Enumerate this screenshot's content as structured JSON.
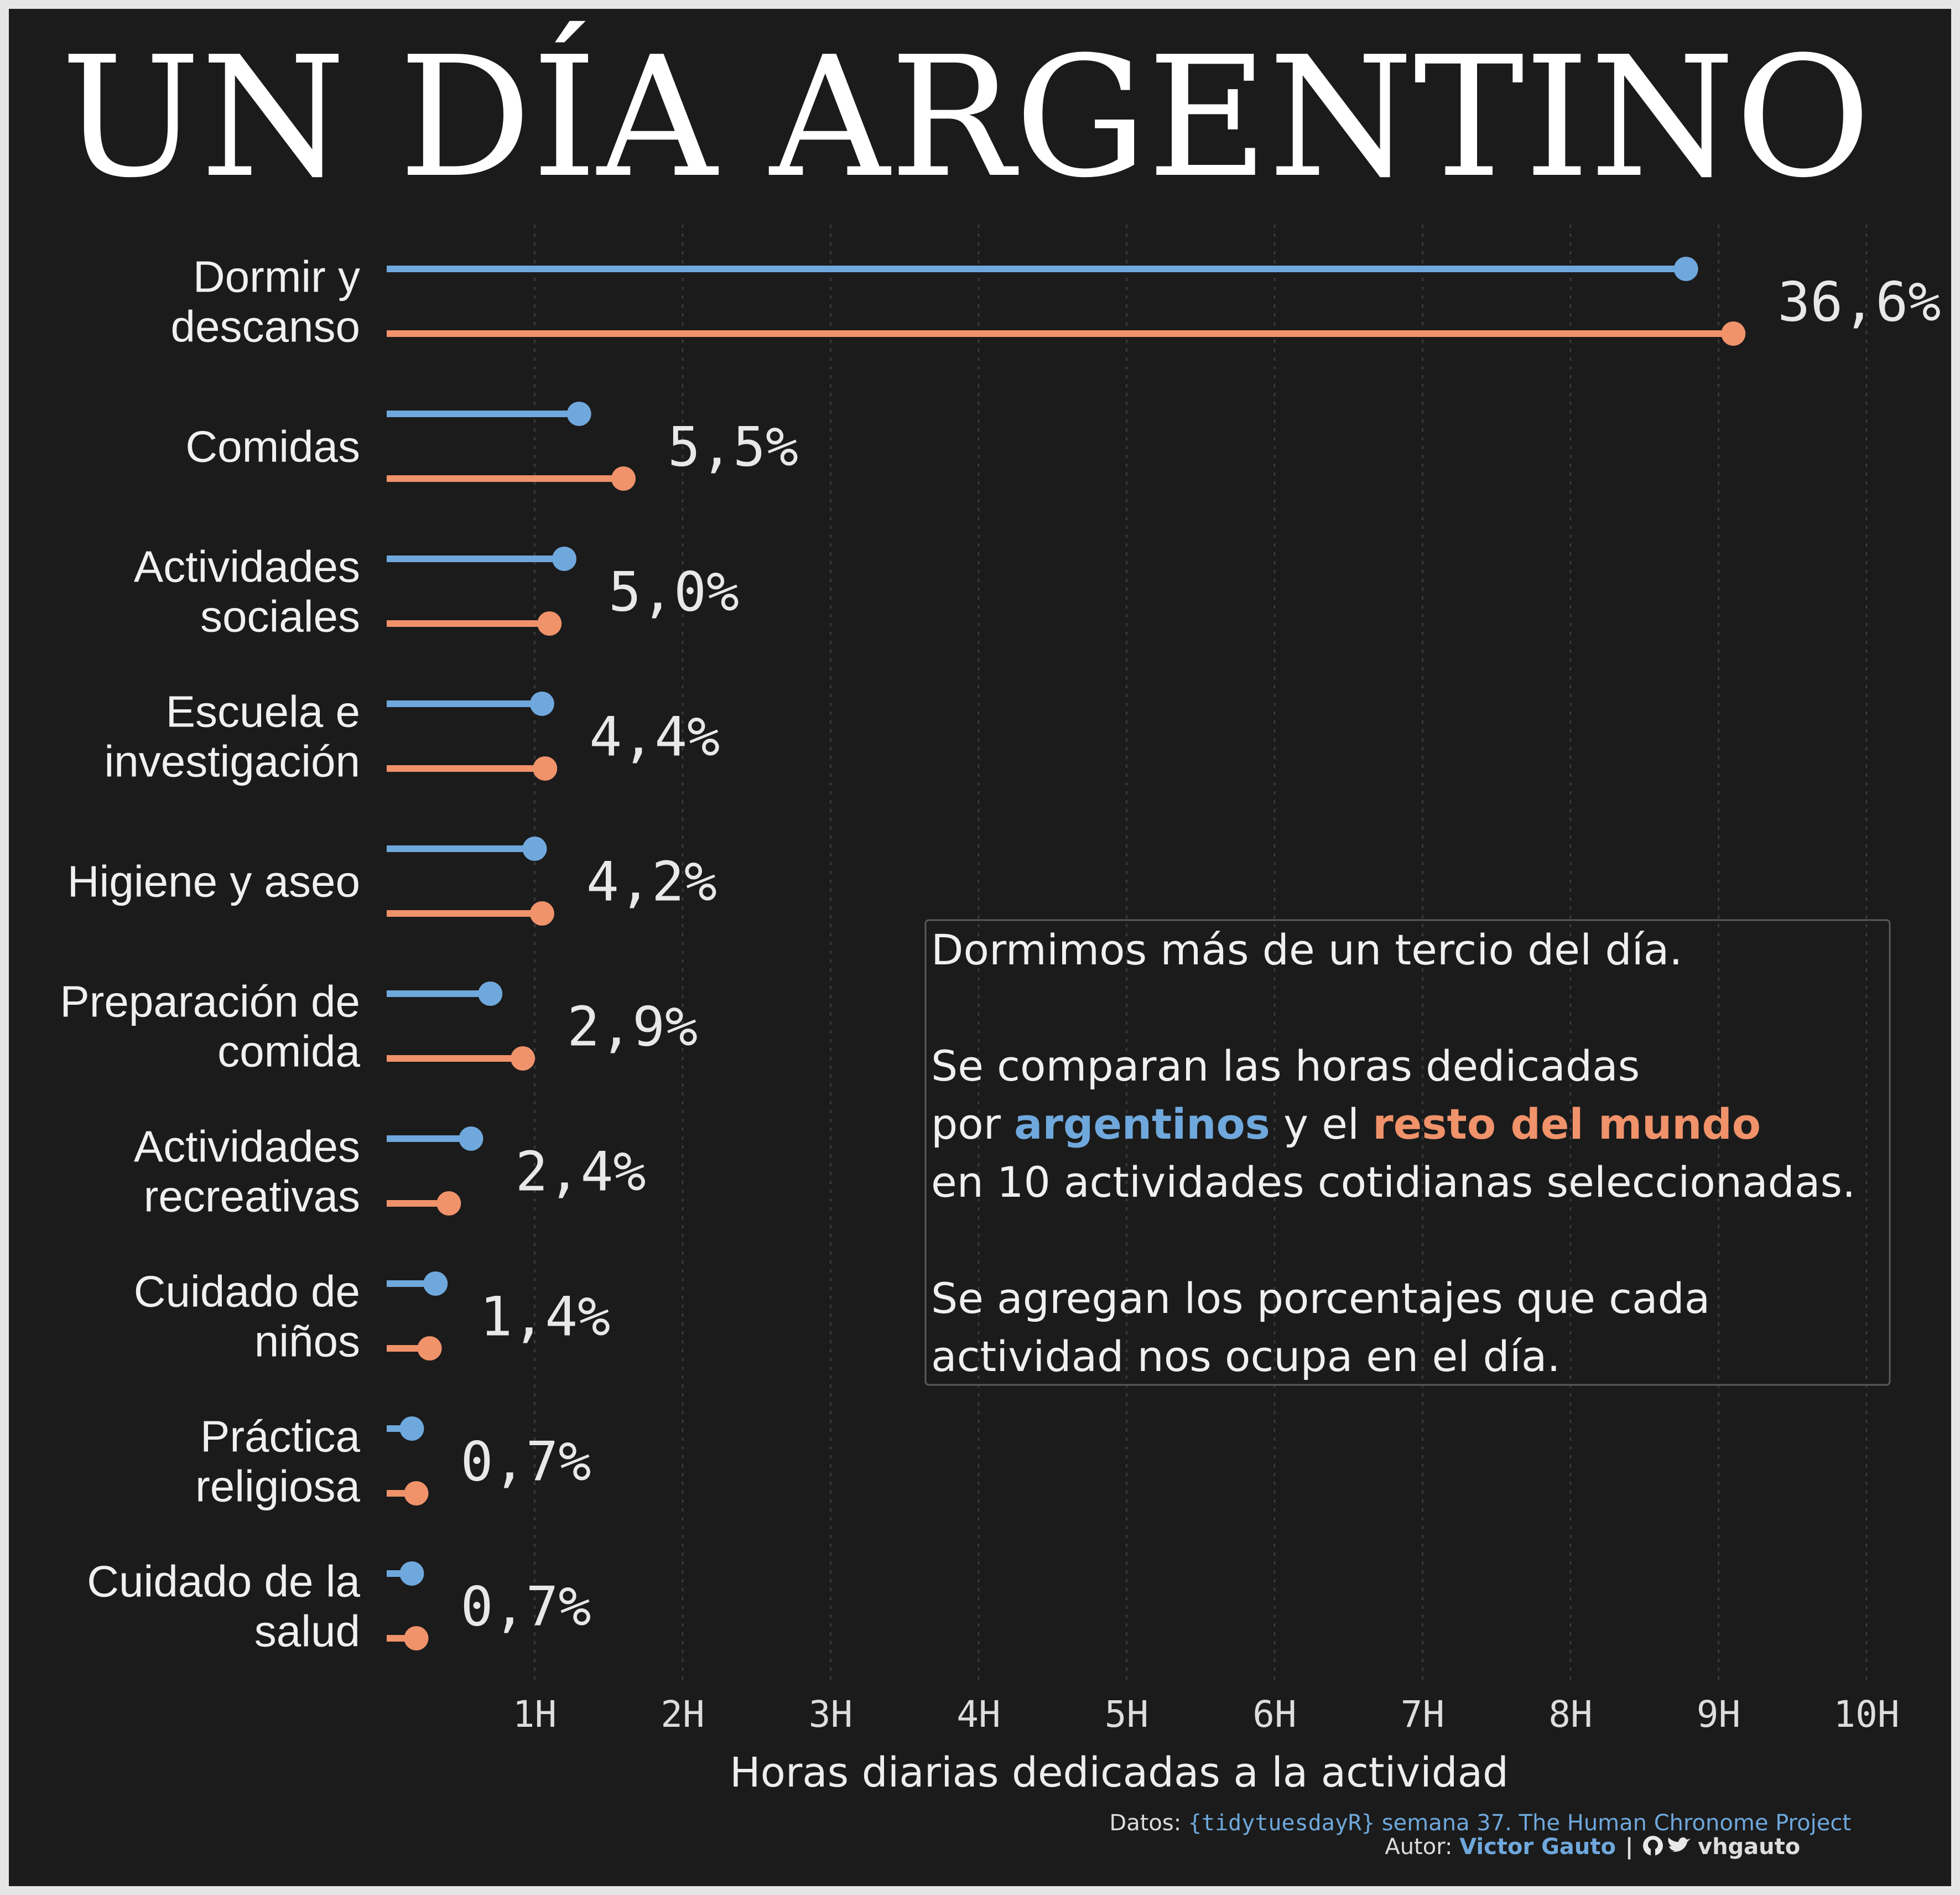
{
  "colors": {
    "background": "#1b1b1b",
    "argentina": "#6fa8dc",
    "world": "#f0926a",
    "text": "#f0f0f0",
    "grid": "#3a3a3a"
  },
  "chart_data": {
    "type": "dumbbell-lollipop",
    "title": "UN DÍA ARGENTINO",
    "xlabel": "Horas diarias dedicadas a la actividad",
    "xlim": [
      0,
      10
    ],
    "x_ticks": [
      1,
      2,
      3,
      4,
      5,
      6,
      7,
      8,
      9,
      10
    ],
    "x_tick_labels": [
      "1H",
      "2H",
      "3H",
      "4H",
      "5H",
      "6H",
      "7H",
      "8H",
      "9H",
      "10H"
    ],
    "grid": "vertical dotted",
    "series": [
      {
        "name": "argentinos",
        "color": "#6fa8dc"
      },
      {
        "name": "resto del mundo",
        "color": "#f0926a"
      }
    ],
    "categories": [
      {
        "label_lines": [
          "Dormir y",
          "descanso"
        ],
        "argentina": 8.78,
        "world": 9.1,
        "pct_label": "36,6%"
      },
      {
        "label_lines": [
          "Comidas"
        ],
        "argentina": 1.3,
        "world": 1.6,
        "pct_label": "5,5%"
      },
      {
        "label_lines": [
          "Actividades",
          "sociales"
        ],
        "argentina": 1.2,
        "world": 1.1,
        "pct_label": "5,0%"
      },
      {
        "label_lines": [
          "Escuela e",
          "investigación"
        ],
        "argentina": 1.05,
        "world": 1.07,
        "pct_label": "4,4%"
      },
      {
        "label_lines": [
          "Higiene y aseo"
        ],
        "argentina": 1.0,
        "world": 1.05,
        "pct_label": "4,2%"
      },
      {
        "label_lines": [
          "Preparación de",
          "comida"
        ],
        "argentina": 0.7,
        "world": 0.92,
        "pct_label": "2,9%"
      },
      {
        "label_lines": [
          "Actividades",
          "recreativas"
        ],
        "argentina": 0.57,
        "world": 0.42,
        "pct_label": "2,4%"
      },
      {
        "label_lines": [
          "Cuidado de",
          "niños"
        ],
        "argentina": 0.33,
        "world": 0.29,
        "pct_label": "1,4%"
      },
      {
        "label_lines": [
          "Práctica",
          "religiosa"
        ],
        "argentina": 0.17,
        "world": 0.2,
        "pct_label": "0,7%"
      },
      {
        "label_lines": [
          "Cuidado de la",
          "salud"
        ],
        "argentina": 0.17,
        "world": 0.2,
        "pct_label": "0,7%"
      }
    ]
  },
  "annotation": {
    "line1": "Dormimos más de un tercio del día.",
    "line2": "Se comparan las horas dedicadas",
    "line3_pre": "por ",
    "line3_arg": "argentinos",
    "line3_mid": " y el ",
    "line3_world": "resto del mundo",
    "line4": "en 10 actividades cotidianas seleccionadas.",
    "line5": "Se agregan los porcentajes que cada",
    "line6": "actividad nos ocupa en el día."
  },
  "caption": {
    "datos_label": "Datos: ",
    "source_pkg": "{tidytuesdayR}",
    "source_rest": " semana 37. The Human Chronome Project",
    "autor_label": "Autor: ",
    "author": "Victor Gauto",
    "separator": "|",
    "handle": "vhgauto"
  }
}
